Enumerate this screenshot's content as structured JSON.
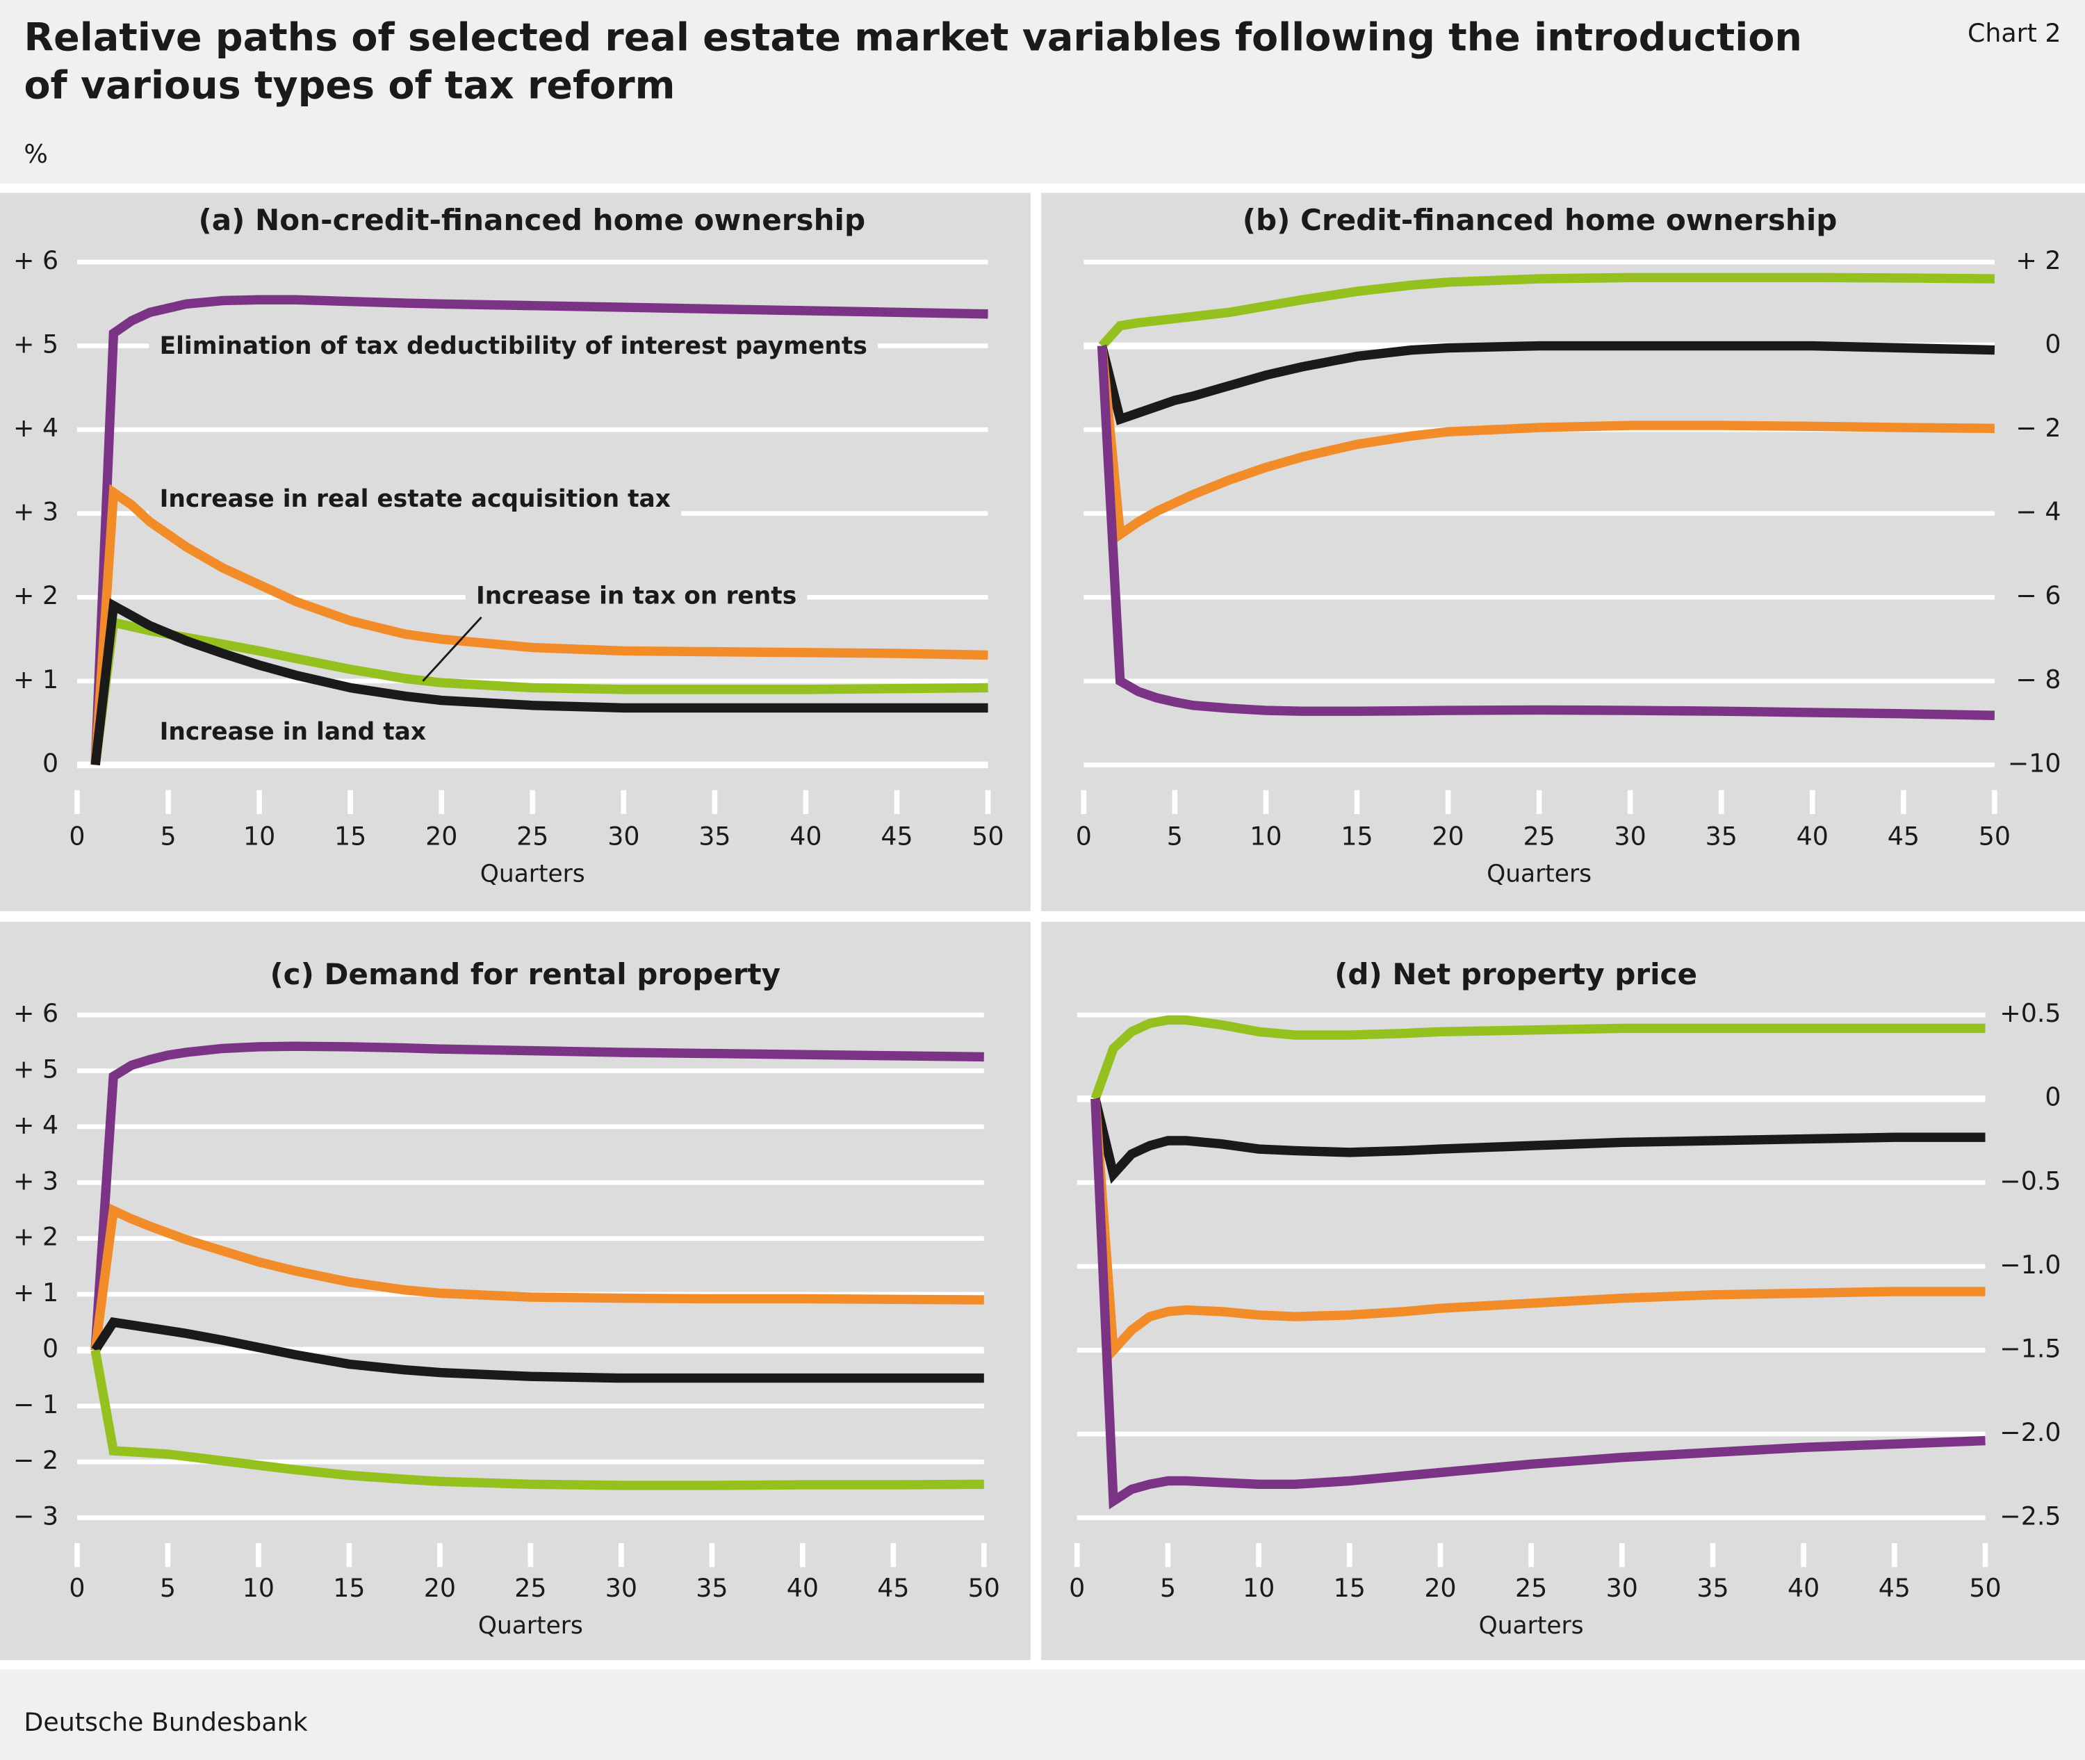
{
  "title": "Relative paths of selected real estate market variables following the introduction of various types of tax reform",
  "chart_label": "Chart 2",
  "unit": "%",
  "source": "Deutsche Bundesbank",
  "chart_data": [
    {
      "type": "line",
      "title": "(a) Non-credit-financed home ownership",
      "x_label": "Quarters",
      "x": [
        1,
        2,
        3,
        4,
        5,
        6,
        8,
        10,
        12,
        15,
        18,
        20,
        25,
        30,
        35,
        40,
        45,
        50
      ],
      "xlim": [
        0,
        50
      ],
      "xticks": [
        0,
        5,
        10,
        15,
        20,
        25,
        30,
        35,
        40,
        45,
        50
      ],
      "ylim": [
        0,
        6
      ],
      "yticks": [
        0,
        {
          "value": 1,
          "label": "+ 1"
        },
        {
          "value": 2,
          "label": "+ 2"
        },
        {
          "value": 3,
          "label": "+ 3"
        },
        {
          "value": 4,
          "label": "+ 4"
        },
        {
          "value": 5,
          "label": "+ 5"
        },
        {
          "value": 6,
          "label": "+ 6"
        }
      ],
      "y_axis_side": "left",
      "grid": true,
      "series": [
        {
          "name": "Elimination of tax deductibility of interest payments",
          "color": "#7b3385",
          "values": [
            0,
            5.15,
            5.3,
            5.4,
            5.45,
            5.5,
            5.54,
            5.55,
            5.55,
            5.53,
            5.51,
            5.5,
            5.48,
            5.46,
            5.44,
            5.42,
            5.4,
            5.38
          ]
        },
        {
          "name": "Increase in real estate acquisition tax",
          "color": "#f28c28",
          "values": [
            0,
            3.25,
            3.1,
            2.9,
            2.75,
            2.6,
            2.35,
            2.15,
            1.95,
            1.72,
            1.56,
            1.5,
            1.4,
            1.36,
            1.35,
            1.34,
            1.33,
            1.31
          ]
        },
        {
          "name": "Increase in tax on rents",
          "color": "#95c11f",
          "values": [
            0,
            1.7,
            1.65,
            1.6,
            1.56,
            1.52,
            1.44,
            1.36,
            1.27,
            1.14,
            1.03,
            0.98,
            0.92,
            0.9,
            0.9,
            0.9,
            0.91,
            0.92
          ]
        },
        {
          "name": "Increase in land tax",
          "color": "#1a1a1a",
          "values": [
            0,
            1.9,
            1.78,
            1.66,
            1.57,
            1.48,
            1.33,
            1.19,
            1.07,
            0.92,
            0.82,
            0.77,
            0.71,
            0.68,
            0.68,
            0.68,
            0.68,
            0.68
          ]
        }
      ]
    },
    {
      "type": "line",
      "title": "(b) Credit-financed home ownership",
      "x_label": "Quarters",
      "x": [
        1,
        2,
        3,
        4,
        5,
        6,
        8,
        10,
        12,
        15,
        18,
        20,
        25,
        30,
        35,
        40,
        45,
        50
      ],
      "xlim": [
        0,
        50
      ],
      "xticks": [
        0,
        5,
        10,
        15,
        20,
        25,
        30,
        35,
        40,
        45,
        50
      ],
      "ylim": [
        -10,
        2
      ],
      "yticks": [
        {
          "value": -10,
          "label": "−10"
        },
        {
          "value": -8,
          "label": "− 8"
        },
        {
          "value": -6,
          "label": "− 6"
        },
        {
          "value": -4,
          "label": "− 4"
        },
        {
          "value": -2,
          "label": "− 2"
        },
        0,
        {
          "value": 2,
          "label": "+ 2"
        }
      ],
      "y_axis_side": "right",
      "grid": true,
      "series": [
        {
          "color": "#95c11f",
          "values": [
            0,
            0.48,
            0.55,
            0.6,
            0.65,
            0.7,
            0.8,
            0.95,
            1.1,
            1.3,
            1.45,
            1.52,
            1.6,
            1.63,
            1.63,
            1.63,
            1.62,
            1.6
          ]
        },
        {
          "color": "#1a1a1a",
          "values": [
            0,
            -1.75,
            -1.6,
            -1.45,
            -1.3,
            -1.2,
            -0.95,
            -0.7,
            -0.5,
            -0.25,
            -0.1,
            -0.05,
            0,
            0,
            0,
            0,
            -0.05,
            -0.1
          ]
        },
        {
          "color": "#f28c28",
          "values": [
            0,
            -4.5,
            -4.2,
            -3.95,
            -3.75,
            -3.55,
            -3.2,
            -2.9,
            -2.65,
            -2.35,
            -2.15,
            -2.05,
            -1.95,
            -1.9,
            -1.9,
            -1.92,
            -1.95,
            -1.97
          ]
        },
        {
          "color": "#7b3385",
          "values": [
            0,
            -8,
            -8.25,
            -8.4,
            -8.5,
            -8.58,
            -8.65,
            -8.7,
            -8.72,
            -8.72,
            -8.71,
            -8.7,
            -8.69,
            -8.7,
            -8.72,
            -8.75,
            -8.78,
            -8.82
          ]
        }
      ]
    },
    {
      "type": "line",
      "title": "(c) Demand for rental property",
      "x_label": "Quarters",
      "x": [
        1,
        2,
        3,
        4,
        5,
        6,
        8,
        10,
        12,
        15,
        18,
        20,
        25,
        30,
        35,
        40,
        45,
        50
      ],
      "xlim": [
        0,
        50
      ],
      "xticks": [
        0,
        5,
        10,
        15,
        20,
        25,
        30,
        35,
        40,
        45,
        50
      ],
      "ylim": [
        -3,
        6
      ],
      "yticks": [
        {
          "value": -3,
          "label": "− 3"
        },
        {
          "value": -2,
          "label": "− 2"
        },
        {
          "value": -1,
          "label": "− 1"
        },
        0,
        {
          "value": 1,
          "label": "+ 1"
        },
        {
          "value": 2,
          "label": "+ 2"
        },
        {
          "value": 3,
          "label": "+ 3"
        },
        {
          "value": 4,
          "label": "+ 4"
        },
        {
          "value": 5,
          "label": "+ 5"
        },
        {
          "value": 6,
          "label": "+ 6"
        }
      ],
      "y_axis_side": "left",
      "grid": true,
      "series": [
        {
          "color": "#7b3385",
          "values": [
            0,
            4.9,
            5.1,
            5.2,
            5.28,
            5.33,
            5.4,
            5.43,
            5.44,
            5.43,
            5.41,
            5.39,
            5.36,
            5.33,
            5.31,
            5.29,
            5.27,
            5.25
          ]
        },
        {
          "color": "#f28c28",
          "values": [
            0,
            2.5,
            2.35,
            2.22,
            2.1,
            1.98,
            1.78,
            1.58,
            1.42,
            1.22,
            1.08,
            1.02,
            0.95,
            0.93,
            0.92,
            0.92,
            0.91,
            0.9
          ]
        },
        {
          "color": "#1a1a1a",
          "values": [
            0,
            0.5,
            0.45,
            0.4,
            0.35,
            0.3,
            0.18,
            0.05,
            -0.08,
            -0.25,
            -0.35,
            -0.4,
            -0.47,
            -0.5,
            -0.5,
            -0.5,
            -0.5,
            -0.5
          ]
        },
        {
          "color": "#95c11f",
          "values": [
            0,
            -1.8,
            -1.82,
            -1.84,
            -1.86,
            -1.9,
            -1.98,
            -2.06,
            -2.14,
            -2.24,
            -2.31,
            -2.35,
            -2.4,
            -2.42,
            -2.42,
            -2.41,
            -2.41,
            -2.4
          ]
        }
      ]
    },
    {
      "type": "line",
      "title": "(d) Net property price",
      "x_label": "Quarters",
      "x": [
        1,
        2,
        3,
        4,
        5,
        6,
        8,
        10,
        12,
        15,
        18,
        20,
        25,
        30,
        35,
        40,
        45,
        50
      ],
      "xlim": [
        0,
        50
      ],
      "xticks": [
        0,
        5,
        10,
        15,
        20,
        25,
        30,
        35,
        40,
        45,
        50
      ],
      "ylim": [
        -2.5,
        0.5
      ],
      "yticks": [
        {
          "value": -2.5,
          "label": "−2.5"
        },
        {
          "value": -2,
          "label": "−2.0"
        },
        {
          "value": -1.5,
          "label": "−1.5"
        },
        {
          "value": -1,
          "label": "−1.0"
        },
        {
          "value": -0.5,
          "label": "−0.5"
        },
        0,
        {
          "value": 0.5,
          "label": "+0.5"
        }
      ],
      "y_axis_side": "right",
      "grid": true,
      "series": [
        {
          "color": "#95c11f",
          "values": [
            0,
            0.3,
            0.4,
            0.45,
            0.47,
            0.47,
            0.44,
            0.4,
            0.38,
            0.38,
            0.39,
            0.4,
            0.41,
            0.42,
            0.42,
            0.42,
            0.42,
            0.42
          ]
        },
        {
          "color": "#1a1a1a",
          "values": [
            0,
            -0.45,
            -0.33,
            -0.28,
            -0.25,
            -0.25,
            -0.27,
            -0.3,
            -0.31,
            -0.32,
            -0.31,
            -0.3,
            -0.28,
            -0.26,
            -0.25,
            -0.24,
            -0.23,
            -0.23
          ]
        },
        {
          "color": "#f28c28",
          "values": [
            0,
            -1.5,
            -1.38,
            -1.3,
            -1.27,
            -1.26,
            -1.27,
            -1.29,
            -1.3,
            -1.29,
            -1.27,
            -1.25,
            -1.22,
            -1.19,
            -1.17,
            -1.16,
            -1.15,
            -1.15
          ]
        },
        {
          "color": "#7b3385",
          "values": [
            0,
            -2.4,
            -2.33,
            -2.3,
            -2.28,
            -2.28,
            -2.29,
            -2.3,
            -2.3,
            -2.28,
            -2.25,
            -2.23,
            -2.18,
            -2.14,
            -2.11,
            -2.08,
            -2.06,
            -2.04
          ]
        }
      ]
    }
  ]
}
